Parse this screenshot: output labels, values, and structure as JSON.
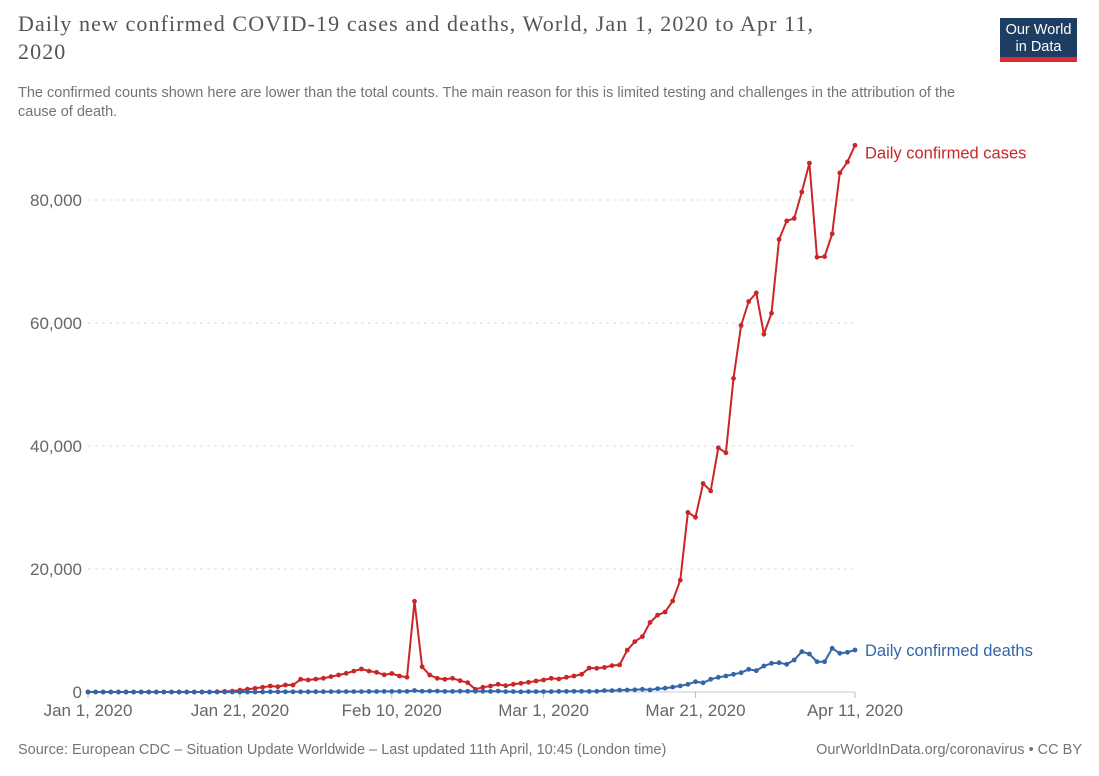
{
  "header": {
    "title": "Daily new confirmed COVID-19 cases and deaths, World, Jan 1, 2020 to Apr 11, 2020",
    "subtitle": "The confirmed counts shown here are lower than the total counts. The main reason for this is limited testing and challenges in the attribution of the cause of death.",
    "logo": {
      "line1": "Our World",
      "line2": "in Data"
    }
  },
  "footer": {
    "source": "Source: European CDC – Situation Update Worldwide – Last updated 11th April, 10:45 (London time)",
    "link": "OurWorldInData.org/coronavirus",
    "separator": "•",
    "license": "CC BY"
  },
  "colors": {
    "cases_red": "#ca2628",
    "deaths_blue": "#3465a8",
    "logo_background": "#1d3d63",
    "logo_stripe": "#e02b35",
    "gridline": "#dddddd",
    "axis_text": "#666666"
  },
  "chart_data": {
    "type": "line",
    "title": "Daily new confirmed COVID-19 cases and deaths, World, Jan 1, 2020 to Apr 11, 2020",
    "subtitle": "The confirmed counts shown here are lower than the total counts. The main reason for this is limited testing and challenges in the attribution of the cause of death.",
    "grid": "horizontal dashed",
    "legend_position": "end-of-line labels",
    "x_axis": {
      "start": "Jan 1, 2020",
      "end": "Apr 11, 2020",
      "interval": "daily",
      "ticks": [
        {
          "label": "Jan 1, 2020",
          "day": 0
        },
        {
          "label": "Jan 21, 2020",
          "day": 20
        },
        {
          "label": "Feb 10, 2020",
          "day": 40
        },
        {
          "label": "Mar 1, 2020",
          "day": 60
        },
        {
          "label": "Mar 21, 2020",
          "day": 80
        },
        {
          "label": "Apr 11, 2020",
          "day": 101
        }
      ]
    },
    "y_axis": {
      "ticks": [
        0,
        20000,
        40000,
        60000,
        80000
      ],
      "range": [
        0,
        90000
      ]
    },
    "series": [
      {
        "name": "Daily confirmed cases",
        "color": "#ca2628",
        "values": [
          0,
          0,
          0,
          0,
          0,
          0,
          0,
          0,
          0,
          0,
          0,
          0,
          0,
          0,
          0,
          0,
          0,
          50,
          100,
          150,
          300,
          450,
          600,
          770,
          980,
          860,
          1140,
          1140,
          2070,
          1950,
          2100,
          2230,
          2500,
          2770,
          3040,
          3400,
          3740,
          3400,
          3200,
          2800,
          3000,
          2600,
          2400,
          14750,
          4100,
          2760,
          2230,
          2070,
          2230,
          1840,
          1510,
          440,
          770,
          980,
          1250,
          1030,
          1250,
          1410,
          1580,
          1790,
          1950,
          2230,
          2110,
          2390,
          2600,
          2870,
          3900,
          3850,
          4000,
          4300,
          4400,
          6800,
          8200,
          9000,
          11300,
          12500,
          13000,
          14800,
          18200,
          29200,
          28400,
          33900,
          32700,
          39700,
          38900,
          51000,
          59600,
          63500,
          64900,
          58200,
          61600,
          73600,
          76600,
          77000,
          81300,
          86000,
          70700,
          70800,
          74500,
          84400,
          86200,
          88900
        ]
      },
      {
        "name": "Daily confirmed deaths",
        "color": "#3465a8",
        "values": [
          0,
          0,
          0,
          0,
          0,
          0,
          0,
          0,
          0,
          0,
          0,
          0,
          0,
          0,
          0,
          0,
          0,
          0,
          0,
          0,
          0,
          0,
          0,
          0,
          25,
          25,
          25,
          30,
          30,
          40,
          45,
          45,
          60,
          60,
          65,
          65,
          70,
          75,
          85,
          90,
          95,
          100,
          100,
          250,
          120,
          145,
          140,
          105,
          100,
          135,
          120,
          110,
          110,
          100,
          150,
          70,
          65,
          40,
          60,
          65,
          60,
          70,
          100,
          100,
          110,
          120,
          100,
          120,
          230,
          220,
          300,
          330,
          350,
          440,
          340,
          540,
          610,
          800,
          1000,
          1250,
          1670,
          1500,
          2070,
          2390,
          2600,
          2880,
          3140,
          3690,
          3470,
          4230,
          4670,
          4770,
          4500,
          5200,
          6550,
          6180,
          4930,
          4930,
          7100,
          6290,
          6460,
          6830
        ]
      }
    ]
  }
}
